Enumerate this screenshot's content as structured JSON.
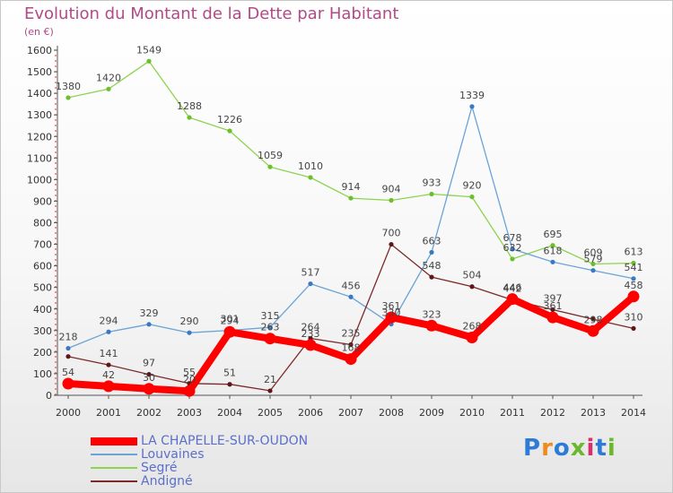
{
  "title": "Evolution du Montant de la Dette par Habitant",
  "unit": "(en €)",
  "logo": {
    "text": "Proxiti",
    "colors": [
      "#2d7bd6",
      "#ef8a1f",
      "#2d7bd6",
      "#6bb82f",
      "#d62f6f",
      "#2d7bd6",
      "#6bb82f"
    ]
  },
  "chart_data": {
    "type": "line",
    "x": [
      "2000",
      "2001",
      "2002",
      "2003",
      "2004",
      "2005",
      "2006",
      "2007",
      "2008",
      "2009",
      "2010",
      "2011",
      "2012",
      "2013",
      "2014"
    ],
    "ylim": [
      0,
      1600
    ],
    "yticks": [
      0,
      100,
      200,
      300,
      400,
      500,
      600,
      700,
      800,
      900,
      1000,
      1100,
      1200,
      1300,
      1400,
      1500,
      1600
    ],
    "grid": false,
    "legend_position": "bottom-left",
    "series": [
      {
        "name": "Segré",
        "color": "#8ed34f",
        "marker": "#6bbf2a",
        "width": 1.3,
        "dot": 2.6,
        "values": [
          1380,
          1420,
          1549,
          1288,
          1226,
          1059,
          1010,
          914,
          904,
          933,
          920,
          632,
          695,
          609,
          613
        ]
      },
      {
        "name": "Louvaines",
        "color": "#6aa3d5",
        "marker": "#3a78c4",
        "width": 1.3,
        "dot": 2.6,
        "values": [
          218,
          294,
          329,
          290,
          301,
          315,
          517,
          456,
          330,
          663,
          1339,
          678,
          618,
          579,
          541
        ]
      },
      {
        "name": "Andigné",
        "color": "#7b2a2a",
        "marker": "#5e1616",
        "width": 1.3,
        "dot": 2.6,
        "values": [
          180,
          141,
          97,
          55,
          51,
          21,
          264,
          235,
          700,
          548,
          504,
          442,
          397,
          353,
          310
        ]
      },
      {
        "name": "LA CHAPELLE-SUR-OUDON",
        "color": "#ff0000",
        "marker": "#ff0000",
        "width": 8,
        "dot": 6.5,
        "values": [
          54,
          42,
          30,
          20,
          294,
          263,
          233,
          168,
          361,
          323,
          268,
          446,
          361,
          298,
          458
        ]
      }
    ],
    "data_labels": [
      {
        "series": "Segré",
        "labels": [
          "1380",
          "1420",
          "1549",
          "1288",
          "1226",
          "1059",
          "1010",
          "914",
          "904",
          "933",
          "920",
          "632",
          "695",
          "609",
          "613"
        ]
      },
      {
        "series": "Louvaines",
        "labels": [
          "218",
          "294",
          "329",
          "290",
          "301",
          "315",
          "517",
          "456",
          "330",
          "663",
          "1339",
          "678",
          "618",
          "579",
          "541"
        ]
      },
      {
        "series": "Andigné",
        "labels": [
          "",
          "141",
          "97",
          "55",
          "51",
          "21",
          "264",
          "235",
          "700",
          "548",
          "504",
          "442",
          "397",
          "",
          "310"
        ]
      },
      {
        "series": "LA CHAPELLE-SUR-OUDON",
        "labels": [
          "54",
          "42",
          "30",
          "20",
          "294",
          "263",
          "233",
          "168",
          "361",
          "323",
          "268",
          "446",
          "361",
          "298",
          "458"
        ]
      }
    ],
    "legend_order": [
      "LA CHAPELLE-SUR-OUDON",
      "Louvaines",
      "Segré",
      "Andigné"
    ]
  }
}
